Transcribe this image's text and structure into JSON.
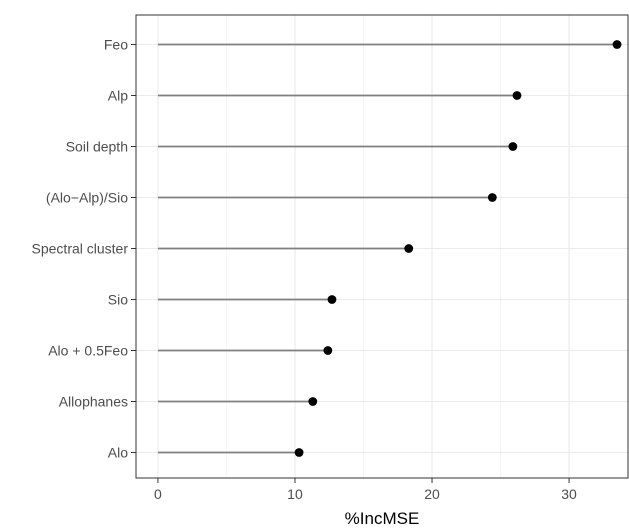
{
  "chart_data": {
    "type": "lollipop",
    "orientation": "horizontal",
    "title": "",
    "xlabel": "%IncMSE",
    "ylabel": "",
    "xlim": [
      -1.6,
      34.3
    ],
    "x_ticks": [
      0,
      10,
      20,
      30
    ],
    "grid": true,
    "legend": "none",
    "categories": [
      "Feo",
      "Alp",
      "Soil depth",
      "(Alo−Alp)/Sio",
      "Spectral cluster",
      "Sio",
      "Alo + 0.5Feo",
      "Allophanes",
      "Alo"
    ],
    "values": [
      33.5,
      26.2,
      25.9,
      24.4,
      18.3,
      12.7,
      12.4,
      11.3,
      10.3
    ],
    "colors": {
      "point": "#000000",
      "stem": "#7f7f7f",
      "grid_major": "#ebebeb",
      "grid_minor": "#f5f5f5",
      "panel_border": "#333333",
      "tick_text": "#4d4d4d"
    }
  }
}
